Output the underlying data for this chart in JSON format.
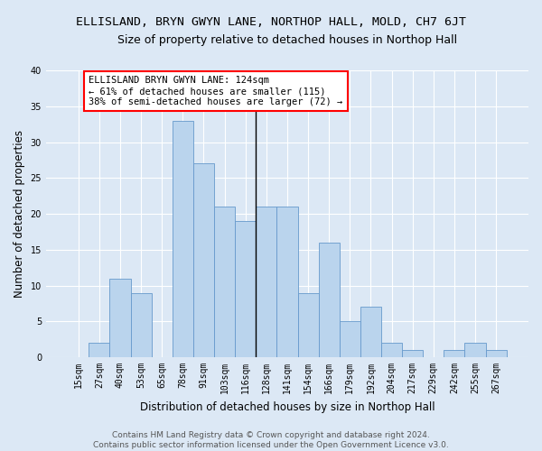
{
  "title": "ELLISLAND, BRYN GWYN LANE, NORTHOP HALL, MOLD, CH7 6JT",
  "subtitle": "Size of property relative to detached houses in Northop Hall",
  "xlabel": "Distribution of detached houses by size in Northop Hall",
  "ylabel": "Number of detached properties",
  "bar_labels": [
    "15sqm",
    "27sqm",
    "40sqm",
    "53sqm",
    "65sqm",
    "78sqm",
    "91sqm",
    "103sqm",
    "116sqm",
    "128sqm",
    "141sqm",
    "154sqm",
    "166sqm",
    "179sqm",
    "192sqm",
    "204sqm",
    "217sqm",
    "229sqm",
    "242sqm",
    "255sqm",
    "267sqm"
  ],
  "bar_values": [
    0,
    2,
    11,
    9,
    0,
    33,
    27,
    21,
    19,
    21,
    21,
    9,
    16,
    5,
    7,
    2,
    1,
    0,
    1,
    2,
    1
  ],
  "bar_color": "#bad4ed",
  "bar_edge_color": "#6699cc",
  "ylim": [
    0,
    40
  ],
  "yticks": [
    0,
    5,
    10,
    15,
    20,
    25,
    30,
    35,
    40
  ],
  "vline_index": 8.5,
  "annotation_text": "ELLISLAND BRYN GWYN LANE: 124sqm\n← 61% of detached houses are smaller (115)\n38% of semi-detached houses are larger (72) →",
  "footer1": "Contains HM Land Registry data © Crown copyright and database right 2024.",
  "footer2": "Contains public sector information licensed under the Open Government Licence v3.0.",
  "bg_color": "#dce8f5",
  "grid_color": "#ffffff",
  "title_fontsize": 9.5,
  "subtitle_fontsize": 9,
  "label_fontsize": 8.5,
  "tick_fontsize": 7,
  "annot_fontsize": 7.5,
  "footer_fontsize": 6.5
}
